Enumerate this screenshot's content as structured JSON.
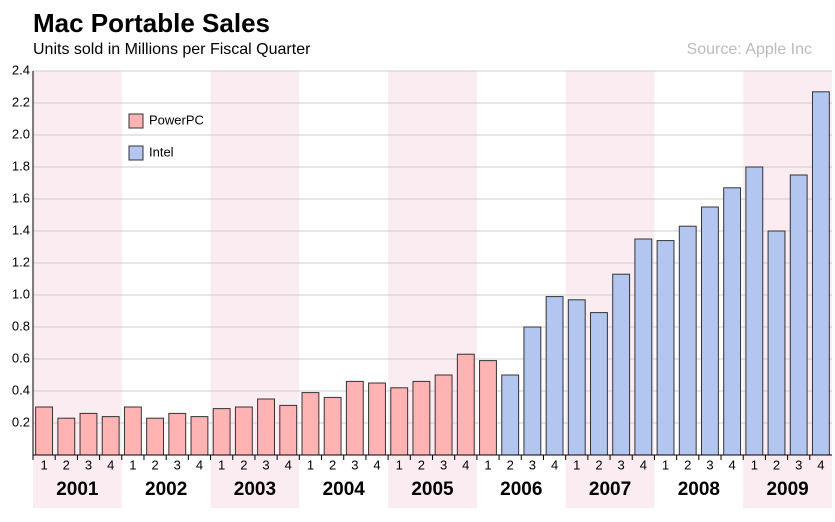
{
  "chart_data": {
    "type": "bar",
    "title": "Mac Portable Sales",
    "subtitle": "Units sold in Millions per Fiscal Quarter",
    "source": "Source: Apple Inc",
    "categories": [
      "1",
      "2",
      "3",
      "4",
      "1",
      "2",
      "3",
      "4",
      "1",
      "2",
      "3",
      "4",
      "1",
      "2",
      "3",
      "4",
      "1",
      "2",
      "3",
      "4",
      "1",
      "2",
      "3",
      "4",
      "1",
      "2",
      "3",
      "4",
      "1",
      "2",
      "3",
      "4",
      "1",
      "2",
      "3",
      "4"
    ],
    "years": [
      "2001",
      "2002",
      "2003",
      "2004",
      "2005",
      "2006",
      "2007",
      "2008",
      "2009"
    ],
    "series": [
      {
        "name": "PowerPC",
        "color": "#ffb3b3",
        "values": [
          0.3,
          0.23,
          0.26,
          0.24,
          0.3,
          0.23,
          0.26,
          0.24,
          0.29,
          0.3,
          0.35,
          0.31,
          0.39,
          0.36,
          0.46,
          0.45,
          0.42,
          0.46,
          0.5,
          0.63,
          0.59,
          null,
          null,
          null,
          null,
          null,
          null,
          null,
          null,
          null,
          null,
          null,
          null,
          null,
          null,
          null
        ]
      },
      {
        "name": "Intel",
        "color": "#b3c6f0",
        "values": [
          null,
          null,
          null,
          null,
          null,
          null,
          null,
          null,
          null,
          null,
          null,
          null,
          null,
          null,
          null,
          null,
          null,
          null,
          null,
          null,
          null,
          0.5,
          0.8,
          0.99,
          0.97,
          0.89,
          1.13,
          1.35,
          1.34,
          1.43,
          1.55,
          1.67,
          1.8,
          1.4,
          1.75,
          2.27
        ]
      }
    ],
    "ylim": [
      0,
      2.4
    ],
    "yticks": [
      0.2,
      0.4,
      0.6,
      0.8,
      {
        "value": 1.0,
        "label": "1.0"
      },
      1.2,
      1.4,
      1.6,
      1.8,
      {
        "value": 2.0,
        "label": "2.0"
      },
      2.2,
      2.4
    ],
    "grid": true,
    "legend": "top-left"
  }
}
